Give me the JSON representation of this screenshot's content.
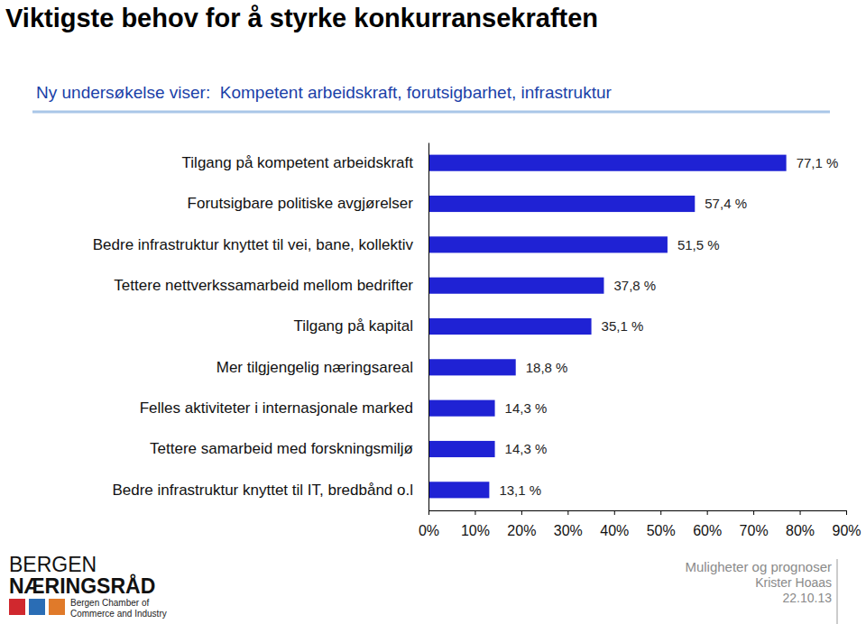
{
  "chart_data": {
    "type": "bar",
    "orientation": "horizontal",
    "title": "Viktigste behov for å styrke konkurransekraften",
    "subtitle": "Ny undersøkelse viser:  Kompetent arbeidskraft, forutsigbarhet, infrastruktur",
    "categories": [
      "Tilgang på kompetent arbeidskraft",
      "Forutsigbare politiske avgjørelser",
      "Bedre infrastruktur knyttet til vei, bane, kollektiv",
      "Tettere nettverkssamarbeid mellom bedrifter",
      "Tilgang på kapital",
      "Mer tilgjengelig næringsareal",
      "Felles aktiviteter i internasjonale marked",
      "Tettere samarbeid med forskningsmiljø",
      "Bedre infrastruktur knyttet til IT, bredbånd o.l"
    ],
    "values": [
      77.1,
      57.4,
      51.5,
      37.8,
      35.1,
      18.8,
      14.3,
      14.3,
      13.1
    ],
    "value_labels": [
      "77,1 %",
      "57,4 %",
      "51,5 %",
      "37,8 %",
      "35,1 %",
      "18,8 %",
      "14,3 %",
      "14,3 %",
      "13,1 %"
    ],
    "data_labels": true,
    "color": "#1f22d4",
    "xlim": [
      0,
      90
    ],
    "xticks": [
      {
        "value": 0,
        "label": "0%"
      },
      {
        "value": 10,
        "label": "10%"
      },
      {
        "value": 20,
        "label": "20%"
      },
      {
        "value": 30,
        "label": "30%"
      },
      {
        "value": 40,
        "label": "40%"
      },
      {
        "value": 50,
        "label": "50%"
      },
      {
        "value": 60,
        "label": "60%"
      },
      {
        "value": 70,
        "label": "70%"
      },
      {
        "value": 80,
        "label": "80%"
      },
      {
        "value": 90,
        "label": "90%"
      }
    ],
    "grid": false
  },
  "footer": {
    "logo_line1": "BERGEN",
    "logo_line2": "NÆRINGSRÅD",
    "logo_sub1": "Bergen Chamber of",
    "logo_sub2": "Commerce and Industry",
    "right1": "Muligheter og prognoser",
    "right2": "Krister Hoaas",
    "right3": "22.10.13"
  }
}
